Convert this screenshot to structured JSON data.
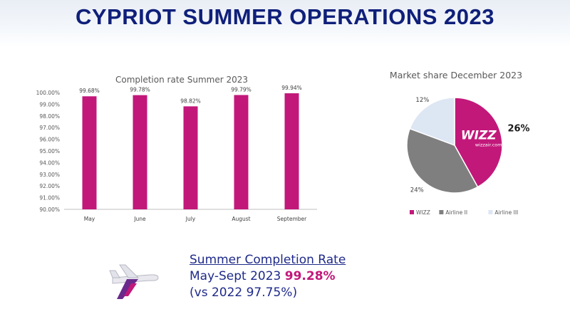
{
  "header": {
    "title": "CYPRIOT SUMMER OPERATIONS 2023"
  },
  "colors": {
    "title": "#0f1f7a",
    "wizz": "#c2187a",
    "airline2": "#7f7f7f",
    "airline3": "#dde6f3",
    "text_dark": "#1f2a8a"
  },
  "chart_data": [
    {
      "type": "bar",
      "title": "Completion rate Summer 2023",
      "categories": [
        "May",
        "June",
        "July",
        "August",
        "September"
      ],
      "series": [
        {
          "values": [
            99.68,
            99.78,
            98.82,
            99.79,
            99.94
          ]
        }
      ],
      "value_labels": [
        "99.68%",
        "99.78%",
        "98.82%",
        "99.79%",
        "99.94%"
      ],
      "ylim": [
        90,
        100
      ],
      "yticks": [
        90,
        91,
        92,
        93,
        94,
        95,
        96,
        97,
        98,
        99,
        100
      ],
      "ytick_labels": [
        "90.00%",
        "91.00%",
        "92.00%",
        "93.00%",
        "94.00%",
        "95.00%",
        "96.00%",
        "97.00%",
        "98.00%",
        "99.00%",
        "100.00%"
      ],
      "grid": false,
      "color": "#c2187a"
    },
    {
      "type": "pie",
      "title": "Market share December 2023",
      "labels": [
        "WIZZ",
        "Airline II",
        "Airline III"
      ],
      "values": [
        26,
        24,
        12
      ],
      "value_labels": [
        "26%",
        "24%",
        "12%"
      ],
      "colors": [
        "#c2187a",
        "#7f7f7f",
        "#dde6f3"
      ],
      "legend": "bottom"
    }
  ],
  "pie_logo": {
    "brand": "WIZZ",
    "url": "wizzair.com"
  },
  "summary": {
    "heading": "Summer Completion Rate",
    "period": "May-Sept  2023 ",
    "value": "99.28%",
    "comparison": "(vs 2022 97.75%)"
  },
  "icons": {
    "plane": "airplane-icon"
  }
}
